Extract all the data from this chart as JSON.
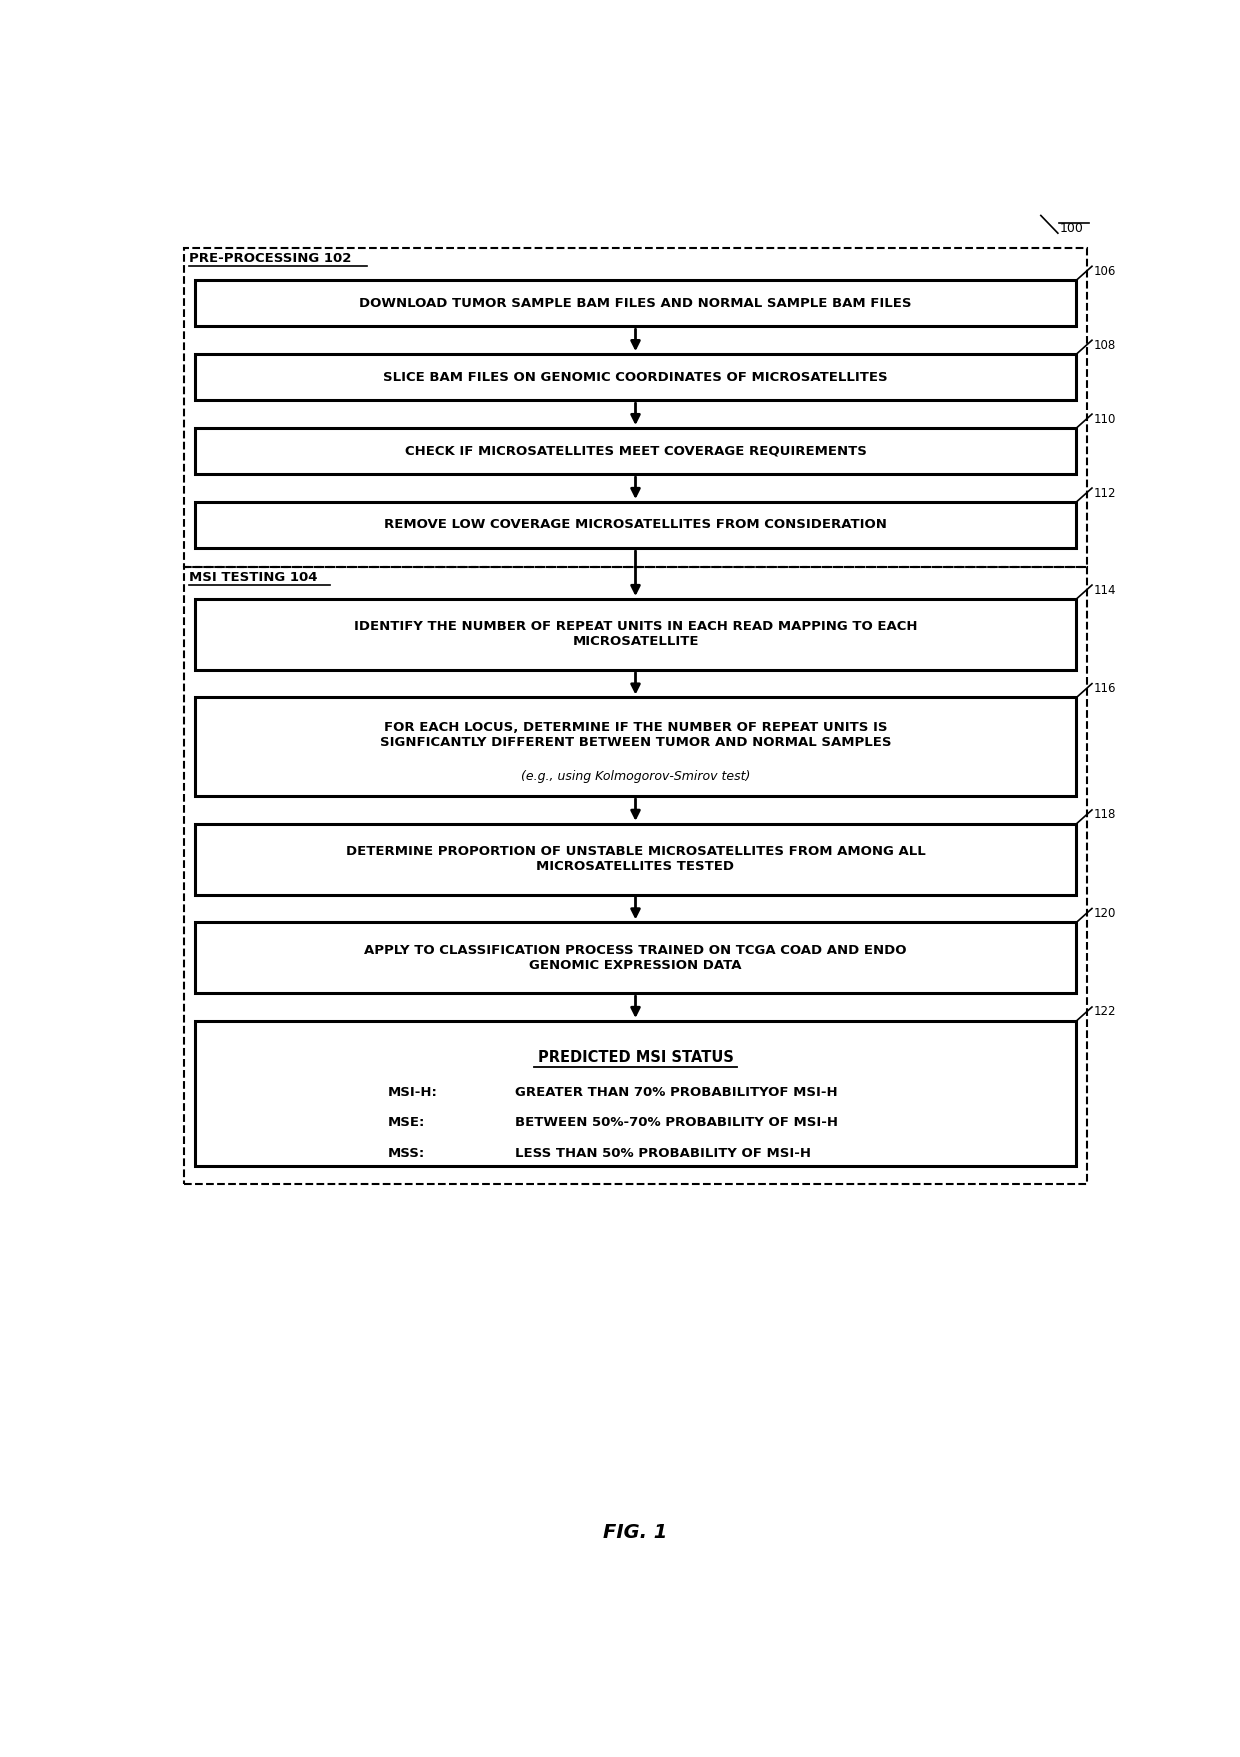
{
  "fig_label": "FIG. 1",
  "main_ref": "100",
  "background_color": "#ffffff",
  "section1_label": "PRE-PROCESSING 102",
  "section2_label": "MSI TESTING 104",
  "box106_text": "DOWNLOAD TUMOR SAMPLE BAM FILES AND NORMAL SAMPLE BAM FILES",
  "box108_text": "SLICE BAM FILES ON GENOMIC COORDINATES OF MICROSATELLITES",
  "box110_text": "CHECK IF MICROSATELLITES MEET COVERAGE REQUIREMENTS",
  "box112_text": "REMOVE LOW COVERAGE MICROSATELLITES FROM CONSIDERATION",
  "box114_text": "IDENTIFY THE NUMBER OF REPEAT UNITS IN EACH READ MAPPING TO EACH\nMICROSATELLITE",
  "box116_main": "FOR EACH LOCUS, DETERMINE IF THE NUMBER OF REPEAT UNITS IS\nSIGNFICANTLY DIFFERENT BETWEEN TUMOR AND NORMAL SAMPLES",
  "box116_italic": "(e.g., using Kolmogorov-Smirov test)",
  "box118_text": "DETERMINE PROPORTION OF UNSTABLE MICROSATELLITES FROM AMONG ALL\nMICROSATELLITES TESTED",
  "box120_text": "APPLY TO CLASSIFICATION PROCESS TRAINED ON TCGA COAD AND ENDO\nGENOMIC EXPRESSION DATA",
  "box122_title": "PREDICTED MSI STATUS",
  "box122_rows": [
    {
      "label": "MSI-H:",
      "text": "GREATER THAN 70% PROBABILITYOF MSI-H"
    },
    {
      "label": "MSE:",
      "text": "BETWEEN 50%-70% PROBABILITY OF MSI-H"
    },
    {
      "label": "MSS:",
      "text": "LESS THAN 50% PROBABILITY OF MSI-H"
    }
  ],
  "refs": [
    "106",
    "108",
    "110",
    "112",
    "114",
    "116",
    "118",
    "120",
    "122"
  ]
}
